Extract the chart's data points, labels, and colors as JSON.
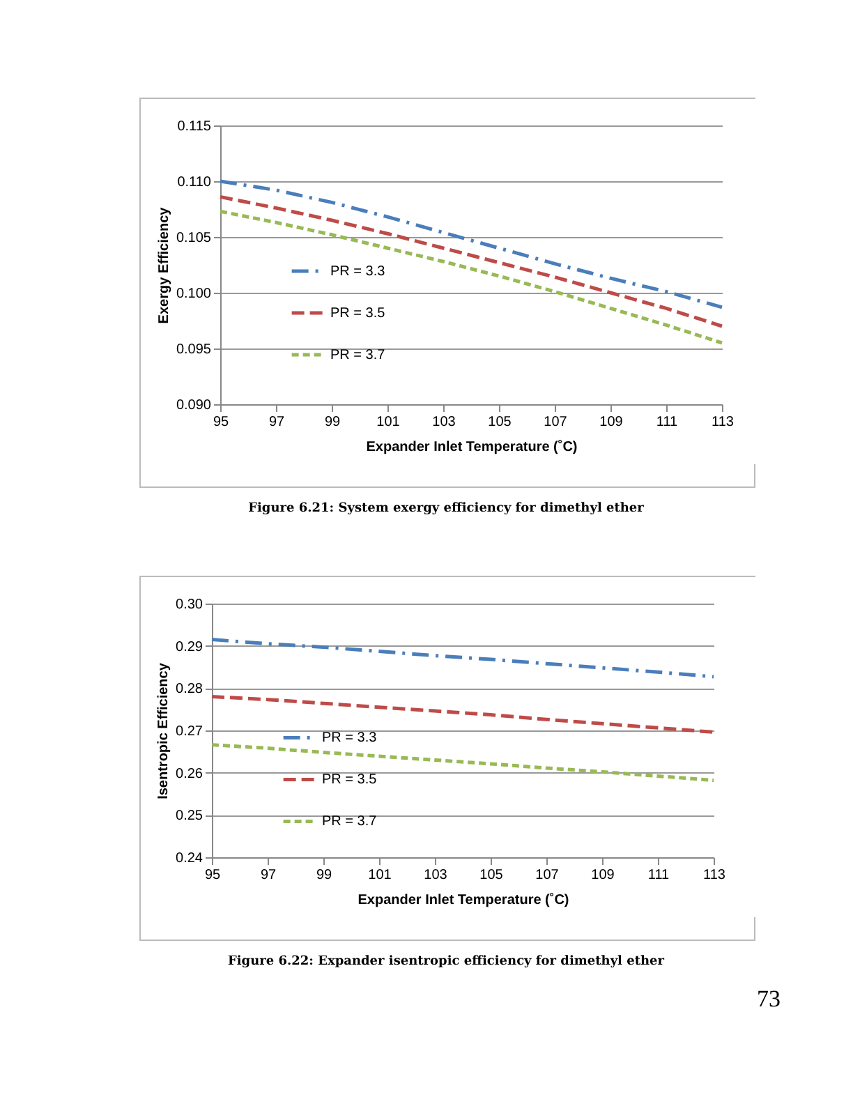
{
  "chart_data": [
    {
      "type": "line",
      "xlabel": "Expander Inlet Temperature (˚C)",
      "ylabel": "Exergy Efficiency",
      "x": [
        95,
        97,
        99,
        101,
        103,
        105,
        107,
        109,
        111,
        113
      ],
      "xlim": [
        95,
        113
      ],
      "xticks": [
        95,
        97,
        99,
        101,
        103,
        105,
        107,
        109,
        111,
        113
      ],
      "ylim": [
        0.09,
        0.115
      ],
      "yticks": [
        {
          "value": 0.09,
          "label": "0.090"
        },
        0.095,
        {
          "value": 0.1,
          "label": "0.100"
        },
        0.105,
        {
          "value": 0.11,
          "label": "0.110"
        },
        0.115
      ],
      "grid": "y",
      "legend": "left",
      "marker": "none",
      "series": [
        {
          "name": "PR = 3.3",
          "color": "#4a7ebb",
          "line_style": "dashdot",
          "values": [
            0.11,
            0.1092,
            0.1081,
            0.1068,
            0.1054,
            0.104,
            0.1026,
            0.1013,
            0.1001,
            0.0987
          ]
        },
        {
          "name": "PR = 3.5",
          "color": "#be4b48",
          "line_style": "dashed",
          "values": [
            0.1086,
            0.1076,
            0.1065,
            0.1053,
            0.104,
            0.1027,
            0.1014,
            0.1,
            0.0986,
            0.097
          ]
        },
        {
          "name": "PR = 3.7",
          "color": "#98b954",
          "line_style": "dotted",
          "values": [
            0.1073,
            0.1063,
            0.1052,
            0.104,
            0.1028,
            0.1015,
            0.1001,
            0.0986,
            0.0971,
            0.0955
          ]
        }
      ],
      "annotations": [
        "Figure 6.21: System exergy efficiency for dimethyl ether"
      ]
    },
    {
      "type": "line",
      "xlabel": "Expander Inlet Temperature (˚C)",
      "ylabel": "Isentropic Efficiency",
      "x": [
        95,
        97,
        99,
        101,
        103,
        105,
        107,
        109,
        111,
        113
      ],
      "xlim": [
        95,
        113
      ],
      "xticks": [
        95,
        97,
        99,
        101,
        103,
        105,
        107,
        109,
        111,
        113
      ],
      "ylim": [
        0.24,
        0.3
      ],
      "yticks": [
        0.24,
        0.25,
        0.26,
        0.27,
        0.28,
        0.29,
        {
          "value": 0.3,
          "label": "0.30"
        }
      ],
      "grid": "y",
      "legend": "left",
      "marker": "none",
      "series": [
        {
          "name": "PR = 3.3",
          "color": "#4a7ebb",
          "line_style": "dashdot",
          "values": [
            0.2915,
            0.2905,
            0.2897,
            0.2887,
            0.2877,
            0.2868,
            0.2858,
            0.2848,
            0.2838,
            0.2827
          ]
        },
        {
          "name": "PR = 3.5",
          "color": "#be4b48",
          "line_style": "dashed",
          "values": [
            0.278,
            0.2773,
            0.2764,
            0.2755,
            0.2746,
            0.2737,
            0.2726,
            0.2716,
            0.2706,
            0.2696
          ]
        },
        {
          "name": "PR = 3.7",
          "color": "#98b954",
          "line_style": "dotted",
          "values": [
            0.2666,
            0.2658,
            0.2648,
            0.2639,
            0.263,
            0.2621,
            0.2611,
            0.2602,
            0.2592,
            0.2582
          ]
        }
      ],
      "annotations": [
        "Figure 6.22: Expander isentropic efficiency for dimethyl ether",
        "73"
      ]
    }
  ]
}
